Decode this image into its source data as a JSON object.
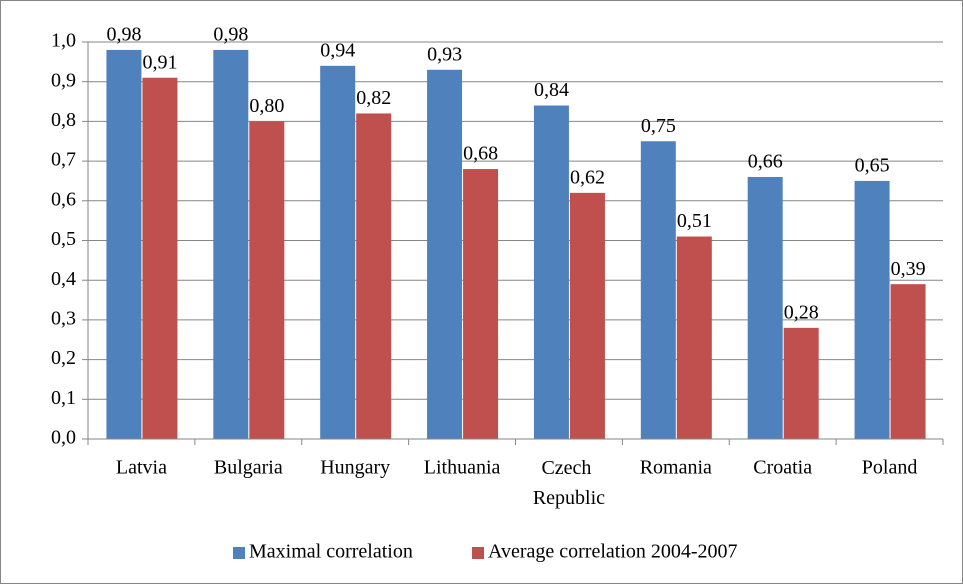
{
  "chart_data": {
    "type": "bar",
    "categories": [
      "Latvia",
      "Bulgaria",
      "Hungary",
      "Lithuania",
      "Czech Republic",
      "Romania",
      "Croatia",
      "Poland"
    ],
    "series": [
      {
        "name": "Maximal correlation",
        "color": "#4f81bd",
        "values": [
          0.98,
          0.98,
          0.94,
          0.93,
          0.84,
          0.75,
          0.66,
          0.65
        ],
        "value_labels": [
          "0,98",
          "0,98",
          "0,94",
          "0,93",
          "0,84",
          "0,75",
          "0,66",
          "0,65"
        ]
      },
      {
        "name": "Average correlation 2004-2007",
        "color": "#c0504d",
        "values": [
          0.91,
          0.8,
          0.82,
          0.68,
          0.62,
          0.51,
          0.28,
          0.39
        ],
        "value_labels": [
          "0,91",
          "0,80",
          "0,82",
          "0,68",
          "0,62",
          "0,51",
          "0,28",
          "0,39"
        ]
      }
    ],
    "ylim": [
      0,
      1
    ],
    "yticks": [
      {
        "value": 0,
        "label": "0,0"
      },
      {
        "value": 0.1,
        "label": "0,1"
      },
      {
        "value": 0.2,
        "label": "0,2"
      },
      {
        "value": 0.3,
        "label": "0,3"
      },
      {
        "value": 0.4,
        "label": "0,4"
      },
      {
        "value": 0.5,
        "label": "0,5"
      },
      {
        "value": 0.6,
        "label": "0,6"
      },
      {
        "value": 0.7,
        "label": "0,7"
      },
      {
        "value": 0.8,
        "label": "0,8"
      },
      {
        "value": 0.9,
        "label": "0,9"
      },
      {
        "value": 1,
        "label": "1,0"
      }
    ],
    "grid": true,
    "legend": "bottom"
  }
}
